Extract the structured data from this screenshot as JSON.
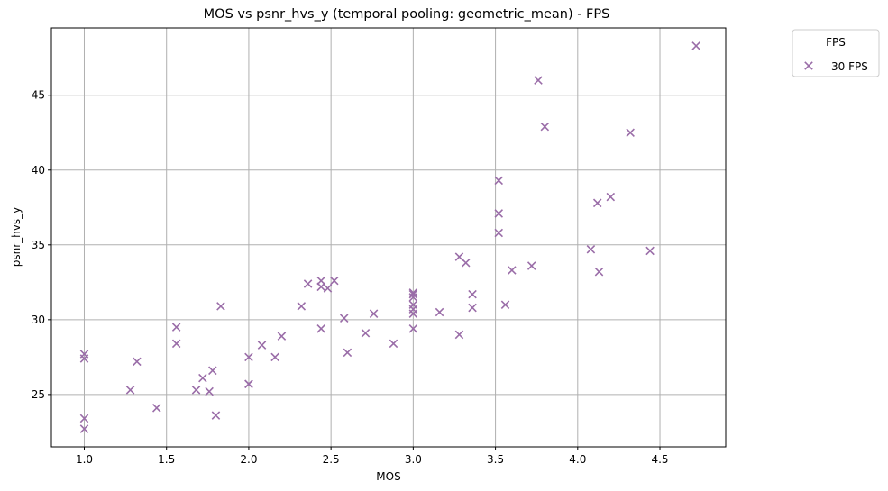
{
  "chart_data": {
    "type": "scatter",
    "title": "MOS vs psnr_hvs_y (temporal pooling: geometric_mean) - FPS",
    "xlabel": "MOS",
    "ylabel": "psnr_hvs_y",
    "xlim": [
      0.8,
      4.9
    ],
    "ylim": [
      21.5,
      49.5
    ],
    "xticks": [
      1.0,
      1.5,
      2.0,
      2.5,
      3.0,
      3.5,
      4.0,
      4.5
    ],
    "yticks": [
      25,
      30,
      35,
      40,
      45
    ],
    "grid": true,
    "legend": {
      "title": "FPS",
      "placement": "outside-top-right"
    },
    "series": [
      {
        "name": "30 FPS",
        "marker": "x",
        "color": "#9a6da8",
        "points": [
          [
            1.0,
            27.7
          ],
          [
            1.0,
            27.4
          ],
          [
            1.0,
            23.4
          ],
          [
            1.0,
            22.7
          ],
          [
            1.28,
            25.3
          ],
          [
            1.32,
            27.2
          ],
          [
            1.44,
            24.1
          ],
          [
            1.56,
            29.5
          ],
          [
            1.56,
            28.4
          ],
          [
            1.68,
            25.3
          ],
          [
            1.72,
            26.1
          ],
          [
            1.76,
            25.2
          ],
          [
            1.78,
            26.6
          ],
          [
            1.8,
            23.6
          ],
          [
            1.83,
            30.9
          ],
          [
            2.0,
            27.5
          ],
          [
            2.0,
            25.7
          ],
          [
            2.0,
            25.7
          ],
          [
            2.08,
            28.3
          ],
          [
            2.16,
            27.5
          ],
          [
            2.2,
            28.9
          ],
          [
            2.32,
            30.9
          ],
          [
            2.36,
            32.4
          ],
          [
            2.44,
            32.6
          ],
          [
            2.44,
            32.2
          ],
          [
            2.44,
            29.4
          ],
          [
            2.48,
            32.1
          ],
          [
            2.52,
            32.6
          ],
          [
            2.58,
            30.1
          ],
          [
            2.6,
            27.8
          ],
          [
            2.71,
            29.1
          ],
          [
            2.76,
            30.4
          ],
          [
            2.88,
            28.4
          ],
          [
            3.0,
            31.8
          ],
          [
            3.0,
            31.7
          ],
          [
            3.0,
            31.5
          ],
          [
            3.0,
            31.0
          ],
          [
            3.0,
            30.7
          ],
          [
            3.0,
            30.4
          ],
          [
            3.0,
            29.4
          ],
          [
            3.16,
            30.5
          ],
          [
            3.28,
            34.2
          ],
          [
            3.28,
            29.0
          ],
          [
            3.32,
            33.8
          ],
          [
            3.36,
            31.7
          ],
          [
            3.36,
            30.8
          ],
          [
            3.52,
            39.3
          ],
          [
            3.52,
            37.1
          ],
          [
            3.52,
            35.8
          ],
          [
            3.56,
            31.0
          ],
          [
            3.6,
            33.3
          ],
          [
            3.72,
            33.6
          ],
          [
            3.76,
            46.0
          ],
          [
            3.8,
            42.9
          ],
          [
            4.08,
            34.7
          ],
          [
            4.12,
            37.8
          ],
          [
            4.13,
            33.2
          ],
          [
            4.2,
            38.2
          ],
          [
            4.32,
            42.5
          ],
          [
            4.44,
            34.6
          ],
          [
            4.72,
            48.3
          ]
        ]
      }
    ]
  }
}
